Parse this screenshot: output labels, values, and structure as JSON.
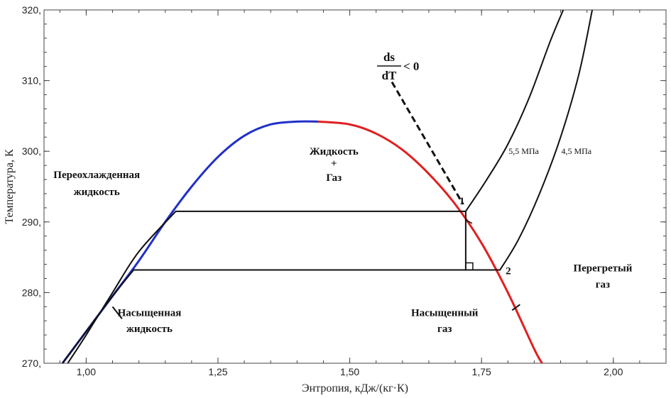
{
  "chart_data": {
    "type": "line",
    "title": "",
    "xlabel": "Энтропия, кДж/(кг·К)",
    "ylabel": "Температура, К",
    "xlim": [
      0.92,
      2.1
    ],
    "ylim": [
      270,
      320
    ],
    "xticks": [
      1.0,
      1.25,
      1.5,
      1.75,
      2.0
    ],
    "xtick_labels": [
      "1,00",
      "1,25",
      "1,50",
      "1,75",
      "2,00"
    ],
    "yticks": [
      270,
      280,
      290,
      300,
      310,
      320
    ],
    "ytick_labels": [
      "270,",
      "280,",
      "290,",
      "300,",
      "310,",
      "320,"
    ],
    "grid": false,
    "series": [
      {
        "color": "#2030c8",
        "x": [
          0.955,
          1.0,
          1.05,
          1.1,
          1.15,
          1.2,
          1.25,
          1.3,
          1.35,
          1.4,
          1.44
        ],
        "y": [
          270,
          274.5,
          279.5,
          284.5,
          290,
          295,
          299.2,
          302.2,
          303.8,
          304.2,
          304.2
        ]
      },
      {
        "color": "#e02020",
        "x": [
          1.44,
          1.5,
          1.55,
          1.6,
          1.65,
          1.7,
          1.75,
          1.8,
          1.85,
          1.865
        ],
        "y": [
          304.2,
          303.8,
          302.5,
          300.2,
          296.8,
          292.5,
          287,
          280,
          272,
          270
        ]
      },
      {
        "name": "5,5 МПа",
        "color": "#111111",
        "x": [
          0.965,
          1.0,
          1.05,
          1.1,
          1.17,
          1.72,
          1.76,
          1.8,
          1.84,
          1.88,
          1.905
        ],
        "y": [
          270,
          274,
          280,
          285.8,
          291.5,
          291.5,
          296,
          301,
          307.5,
          315.5,
          320
        ]
      },
      {
        "name": "4,5 МПа",
        "color": "#111111",
        "x": [
          0.955,
          1.0,
          1.05,
          1.09,
          1.785,
          1.82,
          1.86,
          1.9,
          1.935,
          1.96
        ],
        "y": [
          270,
          274.5,
          279.5,
          283.2,
          283.2,
          287.5,
          294,
          302,
          311,
          320
        ]
      },
      {
        "color": "#111111",
        "x": [
          1.58,
          1.715
        ],
        "y": [
          309.8,
          292.5
        ]
      }
    ],
    "points": [
      {
        "label": "1",
        "x": 1.72,
        "y": 291.5
      },
      {
        "label": "2",
        "x": 1.785,
        "y": 283.2
      }
    ],
    "annotations": [
      {
        "text": "Жидкость",
        "x": 1.47,
        "y": 299.5
      },
      {
        "text": "+",
        "x": 1.47,
        "y": 297.8
      },
      {
        "text": "Газ",
        "x": 1.47,
        "y": 295.8
      },
      {
        "text": "Переохлажденная",
        "x": 1.02,
        "y": 296.2
      },
      {
        "text": "жидкость",
        "x": 1.02,
        "y": 293.8
      },
      {
        "text": "Насыщенная",
        "x": 1.12,
        "y": 276.7
      },
      {
        "text": "жидкость",
        "x": 1.12,
        "y": 274.4
      },
      {
        "text": "Насыщенный",
        "x": 1.68,
        "y": 276.7
      },
      {
        "text": "газ",
        "x": 1.68,
        "y": 274.4
      },
      {
        "text": "Перегретый",
        "x": 1.98,
        "y": 283.0
      },
      {
        "text": "газ",
        "x": 1.98,
        "y": 280.7
      },
      {
        "text": "5,5 МПа",
        "x": 1.83,
        "y": 299.6
      },
      {
        "text": "4,5 МПа",
        "x": 1.93,
        "y": 299.6
      }
    ],
    "derivative_label": {
      "numerator": "ds",
      "denominator": "dT",
      "relation": "< 0"
    }
  }
}
